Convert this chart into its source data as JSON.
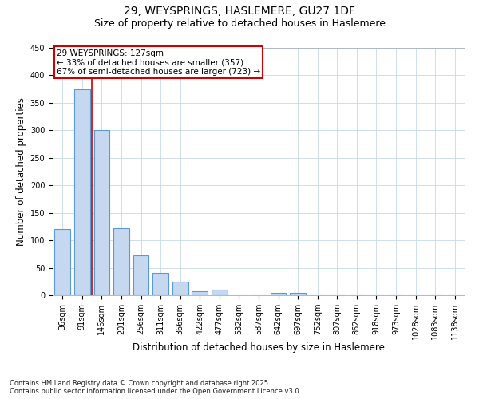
{
  "title_line1": "29, WEYSPRINGS, HASLEMERE, GU27 1DF",
  "title_line2": "Size of property relative to detached houses in Haslemere",
  "xlabel": "Distribution of detached houses by size in Haslemere",
  "ylabel": "Number of detached properties",
  "categories": [
    "36sqm",
    "91sqm",
    "146sqm",
    "201sqm",
    "256sqm",
    "311sqm",
    "366sqm",
    "422sqm",
    "477sqm",
    "532sqm",
    "587sqm",
    "642sqm",
    "697sqm",
    "752sqm",
    "807sqm",
    "862sqm",
    "918sqm",
    "973sqm",
    "1028sqm",
    "1083sqm",
    "1138sqm"
  ],
  "values": [
    120,
    375,
    300,
    122,
    73,
    40,
    25,
    7,
    10,
    0,
    0,
    5,
    5,
    0,
    0,
    0,
    0,
    0,
    0,
    0,
    0
  ],
  "bar_color": "#c5d8f0",
  "bar_edge_color": "#5b9bd5",
  "annotation_text": "29 WEYSPRINGS: 127sqm\n← 33% of detached houses are smaller (357)\n67% of semi-detached houses are larger (723) →",
  "annotation_box_color": "#ffffff",
  "annotation_box_edge_color": "#cc0000",
  "red_line_x": 1.5,
  "ylim": [
    0,
    450
  ],
  "yticks": [
    0,
    50,
    100,
    150,
    200,
    250,
    300,
    350,
    400,
    450
  ],
  "footer_line1": "Contains HM Land Registry data © Crown copyright and database right 2025.",
  "footer_line2": "Contains public sector information licensed under the Open Government Licence v3.0.",
  "bg_color": "#ffffff",
  "grid_color": "#c8d8ec",
  "title_fontsize": 10,
  "subtitle_fontsize": 9,
  "tick_fontsize": 7,
  "label_fontsize": 8.5,
  "annotation_fontsize": 7.5,
  "footer_fontsize": 6
}
